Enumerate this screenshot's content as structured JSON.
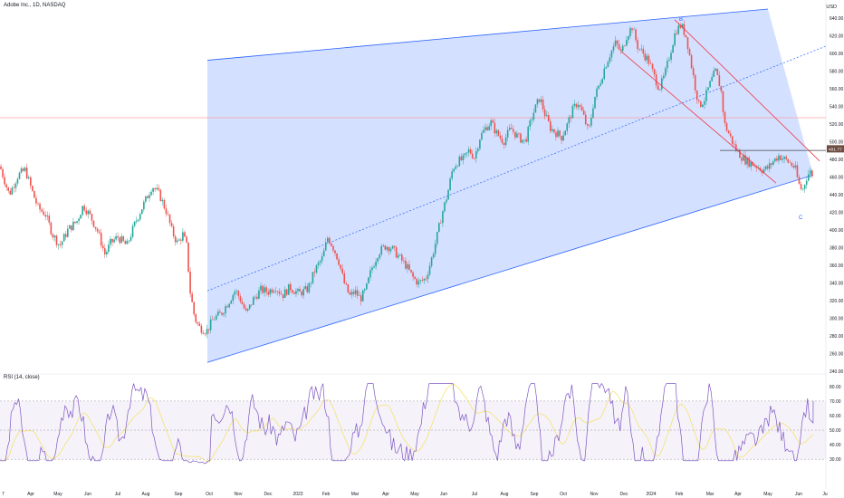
{
  "header": {
    "symbol_line": "Adobe Inc., 1D, NASDAQ",
    "currency": "USD"
  },
  "rsi_header": {
    "label": "RSI (14, close)"
  },
  "colors": {
    "up": "#26a69a",
    "down": "#ef5350",
    "channel_fill": "#2962ff",
    "channel_line": "#2962ff",
    "wedge_line": "#f23645",
    "hline": "#f7a1a1",
    "rsi_line": "#7e57c2",
    "rsi_ma": "#f6e05e",
    "rsi_band": "#7e57c2",
    "label_blue": "#2962ff",
    "price_tag": "#6d4c41"
  },
  "chart_data": {
    "type": "candlestick",
    "price_axis": [
      "640.00",
      "620.00",
      "600.00",
      "580.00",
      "560.00",
      "540.00",
      "520.00",
      "500.00",
      "480.00",
      "460.00",
      "440.00",
      "420.00",
      "400.00",
      "380.00",
      "360.00",
      "340.00",
      "320.00",
      "300.00",
      "280.00",
      "260.00",
      "240.00"
    ],
    "ylim": [
      240,
      650
    ],
    "time_axis": [
      "Apr",
      "May",
      "Jun",
      "Jul",
      "Aug",
      "Sep",
      "Oct",
      "Nov",
      "Dec",
      "2023",
      "Feb",
      "Mar",
      "Apr",
      "May",
      "Jun",
      "Jul",
      "Aug",
      "Sep",
      "Oct",
      "Nov",
      "Dec",
      "2024",
      "Feb",
      "Mar",
      "Apr",
      "May",
      "Jun",
      "Ju"
    ],
    "left_edge_label": "7",
    "current_price_tag": "491.77",
    "point_labels": [
      "B",
      "C"
    ],
    "close_path": [
      [
        0,
        472
      ],
      [
        10,
        440
      ],
      [
        20,
        462
      ],
      [
        28,
        468
      ],
      [
        35,
        445
      ],
      [
        42,
        425
      ],
      [
        50,
        418
      ],
      [
        58,
        395
      ],
      [
        66,
        382
      ],
      [
        75,
        400
      ],
      [
        85,
        410
      ],
      [
        92,
        428
      ],
      [
        100,
        415
      ],
      [
        108,
        398
      ],
      [
        116,
        372
      ],
      [
        122,
        385
      ],
      [
        130,
        392
      ],
      [
        140,
        382
      ],
      [
        150,
        410
      ],
      [
        160,
        432
      ],
      [
        168,
        450
      ],
      [
        176,
        440
      ],
      [
        184,
        420
      ],
      [
        190,
        398
      ],
      [
        196,
        385
      ],
      [
        202,
        395
      ],
      [
        206,
        382
      ],
      [
        210,
        330
      ],
      [
        215,
        300
      ],
      [
        220,
        290
      ],
      [
        228,
        285
      ],
      [
        236,
        300
      ],
      [
        244,
        305
      ],
      [
        252,
        318
      ],
      [
        260,
        332
      ],
      [
        266,
        320
      ],
      [
        272,
        305
      ],
      [
        280,
        322
      ],
      [
        288,
        332
      ],
      [
        296,
        330
      ],
      [
        304,
        336
      ],
      [
        312,
        326
      ],
      [
        320,
        335
      ],
      [
        330,
        328
      ],
      [
        340,
        333
      ],
      [
        348,
        355
      ],
      [
        356,
        368
      ],
      [
        362,
        392
      ],
      [
        368,
        380
      ],
      [
        374,
        365
      ],
      [
        380,
        340
      ],
      [
        386,
        325
      ],
      [
        392,
        330
      ],
      [
        398,
        322
      ],
      [
        404,
        332
      ],
      [
        410,
        355
      ],
      [
        418,
        375
      ],
      [
        426,
        382
      ],
      [
        432,
        380
      ],
      [
        440,
        370
      ],
      [
        448,
        360
      ],
      [
        456,
        346
      ],
      [
        462,
        340
      ],
      [
        470,
        345
      ],
      [
        476,
        365
      ],
      [
        482,
        390
      ],
      [
        488,
        418
      ],
      [
        494,
        440
      ],
      [
        500,
        470
      ],
      [
        506,
        478
      ],
      [
        512,
        480
      ],
      [
        518,
        490
      ],
      [
        524,
        482
      ],
      [
        530,
        505
      ],
      [
        536,
        515
      ],
      [
        542,
        522
      ],
      [
        548,
        510
      ],
      [
        556,
        500
      ],
      [
        564,
        515
      ],
      [
        572,
        505
      ],
      [
        580,
        500
      ],
      [
        588,
        530
      ],
      [
        596,
        550
      ],
      [
        602,
        530
      ],
      [
        608,
        515
      ],
      [
        614,
        510
      ],
      [
        620,
        505
      ],
      [
        626,
        518
      ],
      [
        632,
        535
      ],
      [
        638,
        545
      ],
      [
        644,
        530
      ],
      [
        650,
        510
      ],
      [
        656,
        548
      ],
      [
        662,
        565
      ],
      [
        668,
        585
      ],
      [
        674,
        600
      ],
      [
        680,
        612
      ],
      [
        686,
        600
      ],
      [
        692,
        620
      ],
      [
        698,
        630
      ],
      [
        704,
        608
      ],
      [
        710,
        600
      ],
      [
        716,
        592
      ],
      [
        722,
        575
      ],
      [
        728,
        560
      ],
      [
        734,
        575
      ],
      [
        740,
        600
      ],
      [
        746,
        625
      ],
      [
        752,
        632
      ],
      [
        758,
        618
      ],
      [
        762,
        595
      ],
      [
        768,
        560
      ],
      [
        772,
        540
      ],
      [
        778,
        548
      ],
      [
        784,
        565
      ],
      [
        790,
        580
      ],
      [
        796,
        560
      ],
      [
        800,
        520
      ],
      [
        806,
        506
      ],
      [
        812,
        492
      ],
      [
        818,
        484
      ],
      [
        824,
        478
      ],
      [
        830,
        475
      ],
      [
        836,
        472
      ],
      [
        842,
        468
      ],
      [
        848,
        470
      ],
      [
        854,
        478
      ],
      [
        860,
        484
      ],
      [
        866,
        480
      ],
      [
        872,
        476
      ],
      [
        878,
        470
      ],
      [
        882,
        452
      ],
      [
        886,
        444
      ],
      [
        890,
        458
      ],
      [
        894,
        466
      ],
      [
        898,
        462
      ]
    ],
    "rsi": {
      "levels": [
        70,
        50,
        30
      ],
      "axis": [
        "80.00",
        "70.00",
        "60.00",
        "50.00",
        "40.00",
        "30.00"
      ],
      "ylim": [
        27,
        83
      ]
    },
    "annotations": {
      "channel": {
        "upper": [
          [
            229,
            592
          ],
          [
            848,
            650
          ]
        ],
        "lower": [
          [
            229,
            250
          ],
          [
            898,
            462
          ]
        ],
        "mid_dashed": [
          [
            229,
            331
          ],
          [
            912,
            608
          ]
        ],
        "fill_start_x": 229
      },
      "wedge_upper": [
        [
          745,
          638
        ],
        [
          905,
          478
        ]
      ],
      "wedge_lower": [
        [
          686,
          602
        ],
        [
          857,
          453
        ]
      ],
      "triangle_top": [
        [
          795,
          490
        ],
        [
          912,
          490
        ]
      ],
      "hline": [
        [
          0,
          527
        ],
        [
          912,
          527
        ]
      ]
    }
  }
}
